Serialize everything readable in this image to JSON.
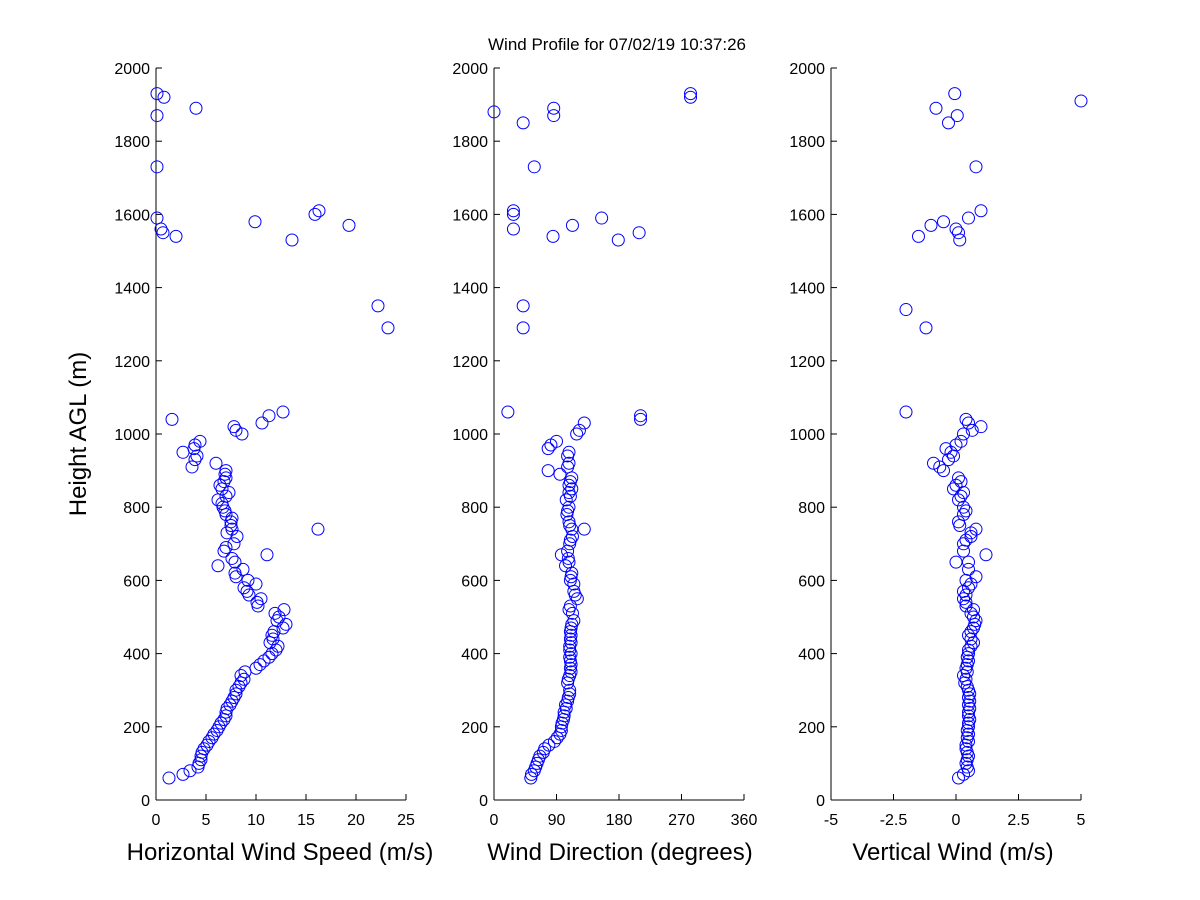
{
  "chart_data": [
    {
      "type": "scatter",
      "title": "Wind Profile for  07/02/19 10:37:26",
      "xlabel": "Horizontal Wind Speed (m/s)",
      "ylabel": "Height AGL (m)",
      "xlim": [
        0,
        25
      ],
      "ylim": [
        0,
        2000
      ],
      "xticks": [
        "0",
        "5",
        "10",
        "15",
        "20",
        "25"
      ],
      "yticks": [
        "0",
        "200",
        "400",
        "600",
        "800",
        "1000",
        "1200",
        "1400",
        "1600",
        "1800",
        "2000"
      ],
      "marker_color": "#0000ff",
      "points": [
        [
          0.1,
          1930
        ],
        [
          0.1,
          1870
        ],
        [
          0.8,
          1920
        ],
        [
          4.0,
          1890
        ],
        [
          0.1,
          1730
        ],
        [
          0.1,
          1590
        ],
        [
          0.5,
          1560
        ],
        [
          0.7,
          1550
        ],
        [
          2.0,
          1540
        ],
        [
          9.9,
          1580
        ],
        [
          15.9,
          1600
        ],
        [
          16.3,
          1610
        ],
        [
          13.6,
          1530
        ],
        [
          19.3,
          1570
        ],
        [
          22.2,
          1350
        ],
        [
          23.2,
          1290
        ],
        [
          1.6,
          1040
        ],
        [
          7.8,
          1020
        ],
        [
          8.0,
          1010
        ],
        [
          10.6,
          1030
        ],
        [
          11.3,
          1050
        ],
        [
          12.7,
          1060
        ],
        [
          8.6,
          1000
        ],
        [
          16.2,
          740
        ],
        [
          4.4,
          980
        ],
        [
          3.9,
          970
        ],
        [
          3.8,
          960
        ],
        [
          2.7,
          950
        ],
        [
          4.1,
          940
        ],
        [
          3.9,
          930
        ],
        [
          6.0,
          920
        ],
        [
          3.6,
          910
        ],
        [
          7.0,
          900
        ],
        [
          6.9,
          890
        ],
        [
          7.0,
          880
        ],
        [
          6.8,
          870
        ],
        [
          6.4,
          860
        ],
        [
          6.6,
          850
        ],
        [
          7.3,
          840
        ],
        [
          7.0,
          830
        ],
        [
          6.2,
          820
        ],
        [
          6.6,
          810
        ],
        [
          6.7,
          800
        ],
        [
          6.9,
          790
        ],
        [
          7.0,
          780
        ],
        [
          7.6,
          770
        ],
        [
          7.5,
          760
        ],
        [
          7.5,
          750
        ],
        [
          7.6,
          740
        ],
        [
          7.1,
          730
        ],
        [
          8.1,
          720
        ],
        [
          7.8,
          700
        ],
        [
          7.0,
          690
        ],
        [
          6.8,
          680
        ],
        [
          11.1,
          670
        ],
        [
          7.6,
          660
        ],
        [
          7.9,
          650
        ],
        [
          6.2,
          640
        ],
        [
          8.7,
          630
        ],
        [
          7.9,
          620
        ],
        [
          8.0,
          610
        ],
        [
          9.2,
          600
        ],
        [
          10.0,
          590
        ],
        [
          8.8,
          580
        ],
        [
          9.1,
          570
        ],
        [
          9.3,
          560
        ],
        [
          10.5,
          550
        ],
        [
          10.1,
          540
        ],
        [
          10.2,
          530
        ],
        [
          12.8,
          520
        ],
        [
          11.9,
          510
        ],
        [
          12.3,
          500
        ],
        [
          12.1,
          490
        ],
        [
          13.0,
          480
        ],
        [
          12.7,
          470
        ],
        [
          11.8,
          460
        ],
        [
          11.6,
          450
        ],
        [
          11.7,
          440
        ],
        [
          11.4,
          430
        ],
        [
          12.2,
          420
        ],
        [
          12.0,
          410
        ],
        [
          11.6,
          400
        ],
        [
          11.3,
          390
        ],
        [
          10.8,
          380
        ],
        [
          10.4,
          370
        ],
        [
          10.0,
          360
        ],
        [
          8.9,
          350
        ],
        [
          8.5,
          340
        ],
        [
          8.8,
          330
        ],
        [
          8.5,
          320
        ],
        [
          8.3,
          310
        ],
        [
          8.0,
          300
        ],
        [
          8.0,
          290
        ],
        [
          7.8,
          280
        ],
        [
          7.6,
          270
        ],
        [
          7.4,
          260
        ],
        [
          7.1,
          250
        ],
        [
          7.0,
          240
        ],
        [
          7.0,
          230
        ],
        [
          6.8,
          220
        ],
        [
          6.5,
          210
        ],
        [
          6.3,
          200
        ],
        [
          6.1,
          190
        ],
        [
          5.8,
          180
        ],
        [
          5.6,
          170
        ],
        [
          5.3,
          160
        ],
        [
          5.1,
          150
        ],
        [
          4.8,
          140
        ],
        [
          4.6,
          130
        ],
        [
          4.5,
          120
        ],
        [
          4.5,
          110
        ],
        [
          4.3,
          100
        ],
        [
          4.2,
          90
        ],
        [
          3.4,
          80
        ],
        [
          2.7,
          70
        ],
        [
          1.3,
          60
        ]
      ]
    },
    {
      "type": "scatter",
      "xlabel": "Wind Direction (degrees)",
      "xlim": [
        0,
        360
      ],
      "ylim": [
        0,
        2000
      ],
      "xticks": [
        "0",
        "90",
        "180",
        "270",
        "360"
      ],
      "yticks": [
        "0",
        "200",
        "400",
        "600",
        "800",
        "1000",
        "1200",
        "1400",
        "1600",
        "1800",
        "2000"
      ],
      "marker_color": "#0000ff",
      "points": [
        [
          283,
          1930
        ],
        [
          283,
          1920
        ],
        [
          0,
          1880
        ],
        [
          86,
          1890
        ],
        [
          86,
          1870
        ],
        [
          42,
          1850
        ],
        [
          58,
          1730
        ],
        [
          28,
          1610
        ],
        [
          28,
          1600
        ],
        [
          28,
          1560
        ],
        [
          155,
          1590
        ],
        [
          113,
          1570
        ],
        [
          209,
          1550
        ],
        [
          85,
          1540
        ],
        [
          179,
          1530
        ],
        [
          42,
          1350
        ],
        [
          42,
          1290
        ],
        [
          20,
          1060
        ],
        [
          211,
          1050
        ],
        [
          211,
          1040
        ],
        [
          130,
          1030
        ],
        [
          123,
          1010
        ],
        [
          119,
          1000
        ],
        [
          90,
          980
        ],
        [
          82,
          970
        ],
        [
          78,
          960
        ],
        [
          108,
          950
        ],
        [
          106,
          940
        ],
        [
          108,
          920
        ],
        [
          106,
          910
        ],
        [
          78,
          900
        ],
        [
          95,
          890
        ],
        [
          112,
          880
        ],
        [
          110,
          870
        ],
        [
          108,
          860
        ],
        [
          112,
          850
        ],
        [
          108,
          840
        ],
        [
          110,
          830
        ],
        [
          104,
          820
        ],
        [
          108,
          800
        ],
        [
          106,
          790
        ],
        [
          105,
          780
        ],
        [
          108,
          760
        ],
        [
          109,
          750
        ],
        [
          112,
          740
        ],
        [
          130,
          740
        ],
        [
          113,
          720
        ],
        [
          110,
          710
        ],
        [
          109,
          700
        ],
        [
          106,
          680
        ],
        [
          97,
          670
        ],
        [
          107,
          660
        ],
        [
          108,
          650
        ],
        [
          103,
          640
        ],
        [
          112,
          620
        ],
        [
          111,
          610
        ],
        [
          110,
          600
        ],
        [
          115,
          590
        ],
        [
          115,
          570
        ],
        [
          117,
          560
        ],
        [
          120,
          550
        ],
        [
          110,
          530
        ],
        [
          108,
          520
        ],
        [
          113,
          510
        ],
        [
          115,
          490
        ],
        [
          112,
          480
        ],
        [
          111,
          470
        ],
        [
          110,
          460
        ],
        [
          111,
          450
        ],
        [
          110,
          440
        ],
        [
          111,
          430
        ],
        [
          109,
          420
        ],
        [
          109,
          410
        ],
        [
          111,
          400
        ],
        [
          109,
          390
        ],
        [
          110,
          380
        ],
        [
          111,
          370
        ],
        [
          110,
          360
        ],
        [
          111,
          350
        ],
        [
          109,
          340
        ],
        [
          107,
          330
        ],
        [
          106,
          320
        ],
        [
          109,
          300
        ],
        [
          109,
          290
        ],
        [
          107,
          280
        ],
        [
          106,
          270
        ],
        [
          103,
          260
        ],
        [
          104,
          250
        ],
        [
          101,
          240
        ],
        [
          101,
          230
        ],
        [
          100,
          220
        ],
        [
          98,
          210
        ],
        [
          97,
          200
        ],
        [
          97,
          190
        ],
        [
          95,
          180
        ],
        [
          91,
          170
        ],
        [
          87,
          160
        ],
        [
          79,
          150
        ],
        [
          73,
          140
        ],
        [
          71,
          130
        ],
        [
          66,
          120
        ],
        [
          64,
          110
        ],
        [
          62,
          100
        ],
        [
          60,
          90
        ],
        [
          58,
          80
        ],
        [
          54,
          70
        ],
        [
          53,
          60
        ]
      ]
    },
    {
      "type": "scatter",
      "xlabel": "Vertical Wind (m/s)",
      "xlim": [
        -5,
        5
      ],
      "ylim": [
        0,
        2000
      ],
      "xticks": [
        "-5",
        "-2.5",
        "0",
        "2.5",
        "5"
      ],
      "yticks": [
        "0",
        "200",
        "400",
        "600",
        "800",
        "1000",
        "1200",
        "1400",
        "1600",
        "1800",
        "2000"
      ],
      "marker_color": "#0000ff",
      "points": [
        [
          -0.05,
          1930
        ],
        [
          -0.8,
          1890
        ],
        [
          5.0,
          1910
        ],
        [
          0.05,
          1870
        ],
        [
          -0.3,
          1850
        ],
        [
          0.8,
          1730
        ],
        [
          -1.0,
          1570
        ],
        [
          -1.5,
          1540
        ],
        [
          -0.5,
          1580
        ],
        [
          0.0,
          1560
        ],
        [
          0.1,
          1550
        ],
        [
          0.5,
          1590
        ],
        [
          1.0,
          1610
        ],
        [
          0.15,
          1530
        ],
        [
          -2.0,
          1340
        ],
        [
          -1.2,
          1290
        ],
        [
          -2.0,
          1060
        ],
        [
          1.0,
          1020
        ],
        [
          0.4,
          1040
        ],
        [
          0.5,
          1030
        ],
        [
          0.65,
          1010
        ],
        [
          0.3,
          1000
        ],
        [
          0.2,
          980
        ],
        [
          0.0,
          970
        ],
        [
          -0.4,
          960
        ],
        [
          -0.2,
          950
        ],
        [
          -0.1,
          940
        ],
        [
          -0.3,
          930
        ],
        [
          -0.9,
          920
        ],
        [
          -0.65,
          910
        ],
        [
          -0.5,
          900
        ],
        [
          0.1,
          880
        ],
        [
          0.2,
          870
        ],
        [
          0.0,
          860
        ],
        [
          -0.1,
          850
        ],
        [
          0.3,
          840
        ],
        [
          0.2,
          830
        ],
        [
          0.1,
          820
        ],
        [
          0.3,
          800
        ],
        [
          0.4,
          790
        ],
        [
          0.3,
          780
        ],
        [
          0.1,
          760
        ],
        [
          0.15,
          750
        ],
        [
          0.8,
          740
        ],
        [
          0.6,
          730
        ],
        [
          0.4,
          710
        ],
        [
          0.6,
          720
        ],
        [
          0.3,
          700
        ],
        [
          0.3,
          680
        ],
        [
          1.2,
          670
        ],
        [
          0.0,
          650
        ],
        [
          0.5,
          650
        ],
        [
          0.5,
          630
        ],
        [
          0.8,
          610
        ],
        [
          0.4,
          600
        ],
        [
          0.6,
          590
        ],
        [
          0.5,
          580
        ],
        [
          0.3,
          570
        ],
        [
          0.4,
          560
        ],
        [
          0.3,
          550
        ],
        [
          0.4,
          540
        ],
        [
          0.4,
          530
        ],
        [
          0.7,
          520
        ],
        [
          0.6,
          510
        ],
        [
          0.7,
          500
        ],
        [
          0.8,
          490
        ],
        [
          0.75,
          480
        ],
        [
          0.7,
          470
        ],
        [
          0.6,
          460
        ],
        [
          0.5,
          450
        ],
        [
          0.6,
          440
        ],
        [
          0.7,
          430
        ],
        [
          0.6,
          420
        ],
        [
          0.5,
          410
        ],
        [
          0.5,
          400
        ],
        [
          0.45,
          390
        ],
        [
          0.5,
          380
        ],
        [
          0.45,
          370
        ],
        [
          0.4,
          360
        ],
        [
          0.45,
          350
        ],
        [
          0.3,
          340
        ],
        [
          0.4,
          330
        ],
        [
          0.35,
          320
        ],
        [
          0.45,
          310
        ],
        [
          0.5,
          300
        ],
        [
          0.55,
          290
        ],
        [
          0.5,
          280
        ],
        [
          0.55,
          270
        ],
        [
          0.5,
          260
        ],
        [
          0.55,
          250
        ],
        [
          0.5,
          240
        ],
        [
          0.5,
          230
        ],
        [
          0.55,
          220
        ],
        [
          0.5,
          210
        ],
        [
          0.5,
          200
        ],
        [
          0.45,
          190
        ],
        [
          0.5,
          180
        ],
        [
          0.45,
          170
        ],
        [
          0.5,
          160
        ],
        [
          0.4,
          150
        ],
        [
          0.4,
          140
        ],
        [
          0.45,
          130
        ],
        [
          0.5,
          120
        ],
        [
          0.45,
          110
        ],
        [
          0.4,
          100
        ],
        [
          0.45,
          90
        ],
        [
          0.5,
          80
        ],
        [
          0.3,
          70
        ],
        [
          0.1,
          60
        ]
      ]
    }
  ]
}
